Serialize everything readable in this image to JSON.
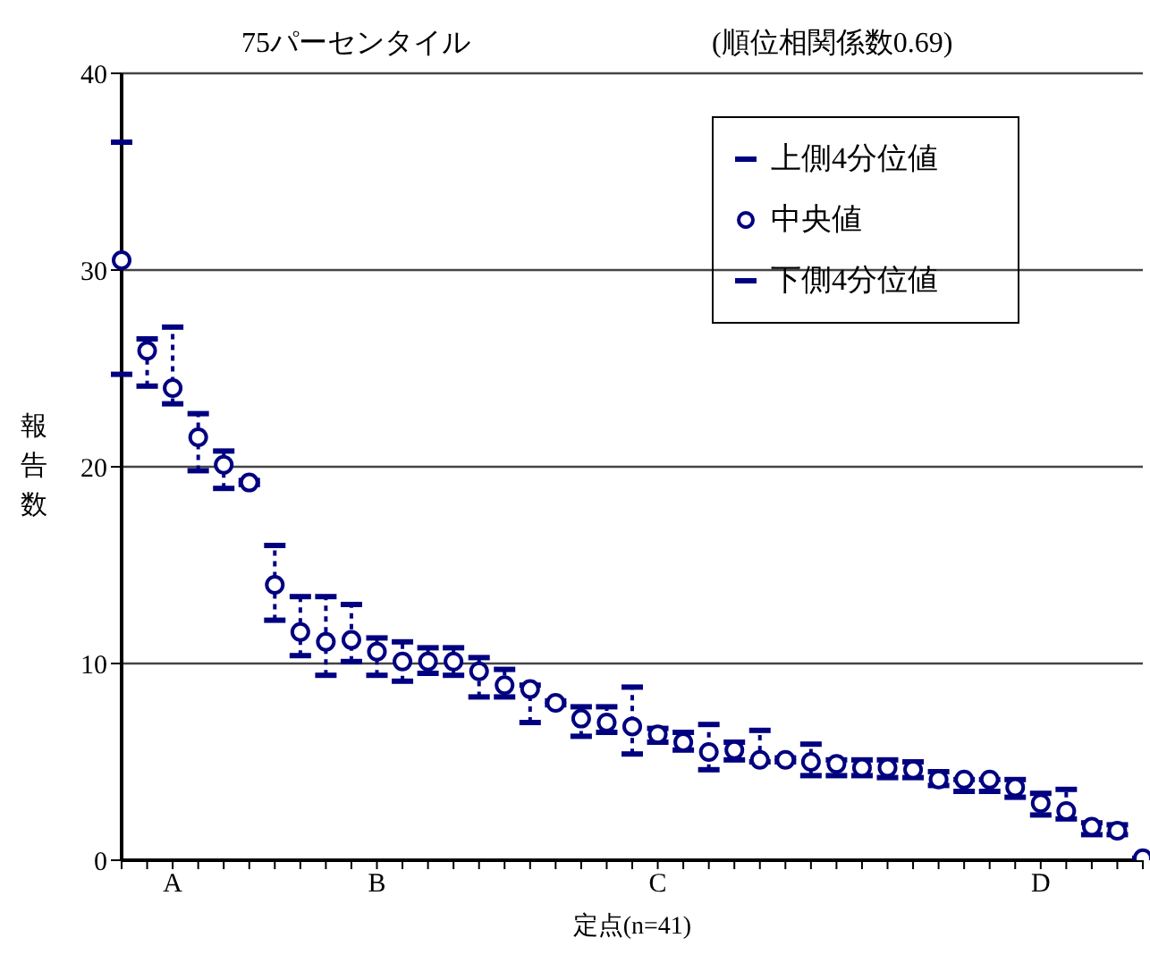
{
  "chart_data": {
    "type": "scatter",
    "title": "75パーセンタイル",
    "subtitle": "(順位相関係数0.69)",
    "xlabel": "定点(n=41)",
    "ylabel": "報告数",
    "categories": [
      null,
      null,
      "A",
      null,
      null,
      null,
      null,
      null,
      null,
      null,
      "B",
      null,
      null,
      null,
      null,
      null,
      null,
      null,
      null,
      null,
      null,
      "C",
      null,
      null,
      null,
      null,
      null,
      null,
      null,
      null,
      null,
      null,
      null,
      null,
      null,
      null,
      "D",
      null,
      null,
      null,
      null
    ],
    "series": [
      {
        "name": "中央値",
        "color": "#000080",
        "marker": "circle",
        "values": [
          30.5,
          25.9,
          24.0,
          21.5,
          20.1,
          19.2,
          14.0,
          11.6,
          11.1,
          11.2,
          10.6,
          10.1,
          10.1,
          10.1,
          9.6,
          8.9,
          8.7,
          8.0,
          7.2,
          7.0,
          6.8,
          6.4,
          6.0,
          5.5,
          5.6,
          5.1,
          5.1,
          5.0,
          4.9,
          4.7,
          4.7,
          4.6,
          4.1,
          4.1,
          4.1,
          3.7,
          2.9,
          2.5,
          1.7,
          1.5,
          0.1
        ],
        "errors": [
          [
            24.7,
            36.5
          ],
          [
            24.1,
            26.5
          ],
          [
            23.2,
            27.1
          ],
          [
            19.8,
            22.7
          ],
          [
            18.9,
            20.8
          ],
          [
            19.1,
            19.3
          ],
          [
            12.2,
            16.0
          ],
          [
            10.4,
            13.4
          ],
          [
            9.4,
            13.4
          ],
          [
            10.1,
            13.0
          ],
          [
            9.4,
            11.3
          ],
          [
            9.1,
            11.1
          ],
          [
            9.5,
            10.8
          ],
          [
            9.4,
            10.8
          ],
          [
            8.3,
            10.3
          ],
          [
            8.3,
            9.7
          ],
          [
            7.0,
            8.9
          ],
          [
            7.9,
            8.1
          ],
          [
            6.3,
            7.8
          ],
          [
            6.5,
            7.8
          ],
          [
            5.4,
            8.8
          ],
          [
            6.0,
            6.7
          ],
          [
            5.6,
            6.5
          ],
          [
            4.6,
            6.9
          ],
          [
            5.1,
            6.0
          ],
          [
            5.0,
            6.6
          ],
          [
            5.0,
            5.2
          ],
          [
            4.3,
            5.9
          ],
          [
            4.3,
            5.1
          ],
          [
            4.3,
            5.1
          ],
          [
            4.2,
            5.1
          ],
          [
            4.2,
            5.0
          ],
          [
            3.8,
            4.5
          ],
          [
            3.5,
            4.1
          ],
          [
            3.5,
            4.1
          ],
          [
            3.2,
            4.1
          ],
          [
            2.3,
            3.4
          ],
          [
            2.1,
            3.6
          ],
          [
            1.3,
            1.9
          ],
          [
            1.3,
            1.8
          ],
          [
            0.0,
            0.1
          ]
        ]
      }
    ],
    "annotations": [
      "上側4分位値",
      "下側4分位値"
    ],
    "ylim": [
      0,
      40
    ],
    "yticks": [
      0,
      10,
      20,
      30,
      40
    ],
    "grid": "y",
    "legend": "top right",
    "line_style": "dotted"
  }
}
